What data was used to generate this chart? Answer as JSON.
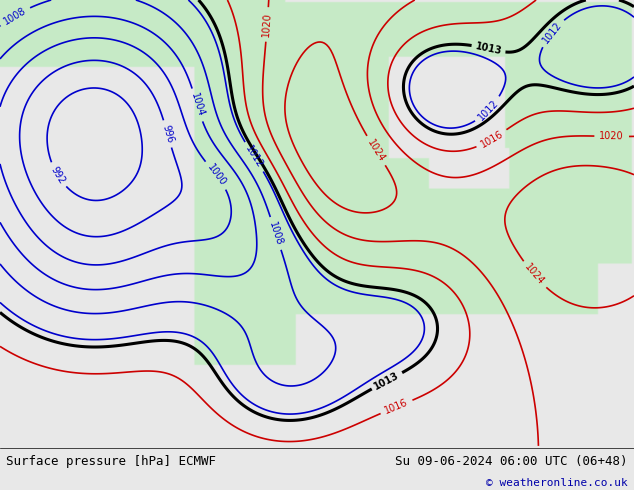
{
  "title_left": "Surface pressure [hPa] ECMWF",
  "title_right": "Su 09-06-2024 06:00 UTC (06+48)",
  "copyright": "© weatheronline.co.uk",
  "bg_color": "#e8e8e8",
  "land_color_rgba": [
    0.78,
    0.92,
    0.78,
    1.0
  ],
  "ocean_color_rgba": [
    0.91,
    0.91,
    0.91,
    1.0
  ],
  "fig_width": 6.34,
  "fig_height": 4.9,
  "dpi": 100,
  "color_black": "#000000",
  "color_blue": "#0000cc",
  "color_red": "#cc0000",
  "color_copyright": "#0000aa"
}
